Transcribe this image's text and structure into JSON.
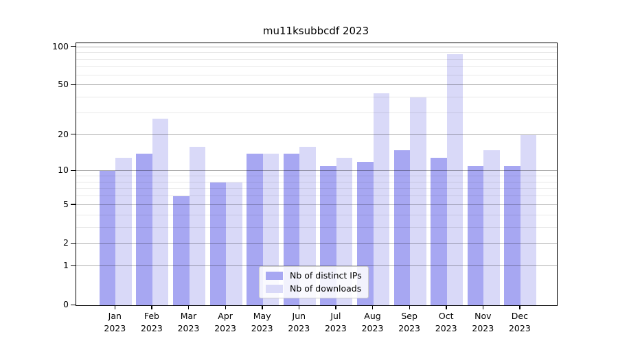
{
  "chart_data": {
    "type": "bar",
    "title": "mu11ksubbcdf 2023",
    "scale": "log1p",
    "ylim": [
      0,
      107
    ],
    "grid": true,
    "axisbelow": false,
    "categories": [
      "Jan 2023",
      "Feb 2023",
      "Mar 2023",
      "Apr 2023",
      "May 2023",
      "Jun 2023",
      "Jul 2023",
      "Aug 2023",
      "Sep 2023",
      "Oct 2023",
      "Nov 2023",
      "Dec 2023"
    ],
    "series": [
      {
        "name": "Nb of distinct IPs",
        "color": "#a7a7f2",
        "values": [
          10,
          14,
          6,
          8,
          14,
          14,
          11,
          12,
          15,
          13,
          11,
          11
        ]
      },
      {
        "name": "Nb of downloads",
        "color": "#d9d9f8",
        "values": [
          13,
          27,
          16,
          8,
          14,
          16,
          13,
          43,
          40,
          88,
          15,
          20
        ]
      }
    ],
    "yticks": [
      0,
      1,
      2,
      5,
      10,
      20,
      50,
      100
    ],
    "yticks_minor": [
      3,
      4,
      6,
      7,
      8,
      9,
      30,
      40,
      60,
      70,
      80,
      90
    ],
    "legend": {
      "position": "lower center"
    },
    "colors": {
      "background": "#ffffff",
      "spine": "#000000",
      "grid_major": "#b0b0b0",
      "grid_minor": "#e9e9e9",
      "text": "#000000",
      "legend_border": "#cccccc"
    }
  }
}
